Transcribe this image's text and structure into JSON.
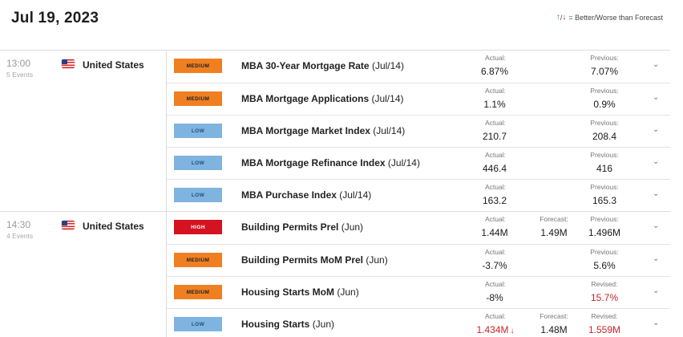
{
  "header": {
    "date": "Jul 19, 2023",
    "legend_up": "↑",
    "legend_sep": "/",
    "legend_down": "↓",
    "legend_text": "= Better/Worse than Forecast"
  },
  "groups": [
    {
      "time": "13:00",
      "events_count": "5 Events",
      "country": "United States",
      "rows": [
        {
          "impact": "MEDIUM",
          "name": "MBA 30-Year Mortgage Rate",
          "period": "(Jul/14)",
          "actual_label": "Actual:",
          "actual": "6.87%",
          "forecast_label": "",
          "forecast": "",
          "previous_label": "Previous:",
          "previous": "7.07%"
        },
        {
          "impact": "MEDIUM",
          "name": "MBA Mortgage Applications",
          "period": "(Jul/14)",
          "actual_label": "Actual:",
          "actual": "1.1%",
          "forecast_label": "",
          "forecast": "",
          "previous_label": "Previous:",
          "previous": "0.9%"
        },
        {
          "impact": "LOW",
          "name": "MBA Mortgage Market Index",
          "period": "(Jul/14)",
          "actual_label": "Actual:",
          "actual": "210.7",
          "forecast_label": "",
          "forecast": "",
          "previous_label": "Previous:",
          "previous": "208.4"
        },
        {
          "impact": "LOW",
          "name": "MBA Mortgage Refinance Index",
          "period": "(Jul/14)",
          "actual_label": "Actual:",
          "actual": "446.4",
          "forecast_label": "",
          "forecast": "",
          "previous_label": "Previous:",
          "previous": "416"
        },
        {
          "impact": "LOW",
          "name": "MBA Purchase Index",
          "period": "(Jul/14)",
          "actual_label": "Actual:",
          "actual": "163.2",
          "forecast_label": "",
          "forecast": "",
          "previous_label": "Previous:",
          "previous": "165.3"
        }
      ]
    },
    {
      "time": "14:30",
      "events_count": "4 Events",
      "country": "United States",
      "rows": [
        {
          "impact": "HIGH",
          "name": "Building Permits Prel",
          "period": "(Jun)",
          "actual_label": "Actual:",
          "actual": "1.44M",
          "forecast_label": "Forecast:",
          "forecast": "1.49M",
          "previous_label": "Previous:",
          "previous": "1.496M"
        },
        {
          "impact": "MEDIUM",
          "name": "Building Permits MoM Prel",
          "period": "(Jun)",
          "actual_label": "Actual:",
          "actual": "-3.7%",
          "forecast_label": "",
          "forecast": "",
          "previous_label": "Previous:",
          "previous": "5.6%"
        },
        {
          "impact": "MEDIUM",
          "name": "Housing Starts MoM",
          "period": "(Jun)",
          "actual_label": "Actual:",
          "actual": "-8%",
          "forecast_label": "",
          "forecast": "",
          "previous_label": "Revised:",
          "previous": "15.7%",
          "previous_color": "#c4262b"
        },
        {
          "impact": "LOW",
          "name": "Housing Starts",
          "period": "(Jun)",
          "actual_label": "Actual:",
          "actual": "1.434M",
          "actual_color": "#c4262b",
          "actual_arrow": "↓",
          "forecast_label": "Forecast:",
          "forecast": "1.48M",
          "previous_label": "Revised:",
          "previous": "1.559M",
          "previous_color": "#c4262b"
        }
      ]
    }
  ],
  "icons": {
    "flag": "us-flag-icon",
    "expand": "chevron-down-icon"
  },
  "chevron": "⌄"
}
